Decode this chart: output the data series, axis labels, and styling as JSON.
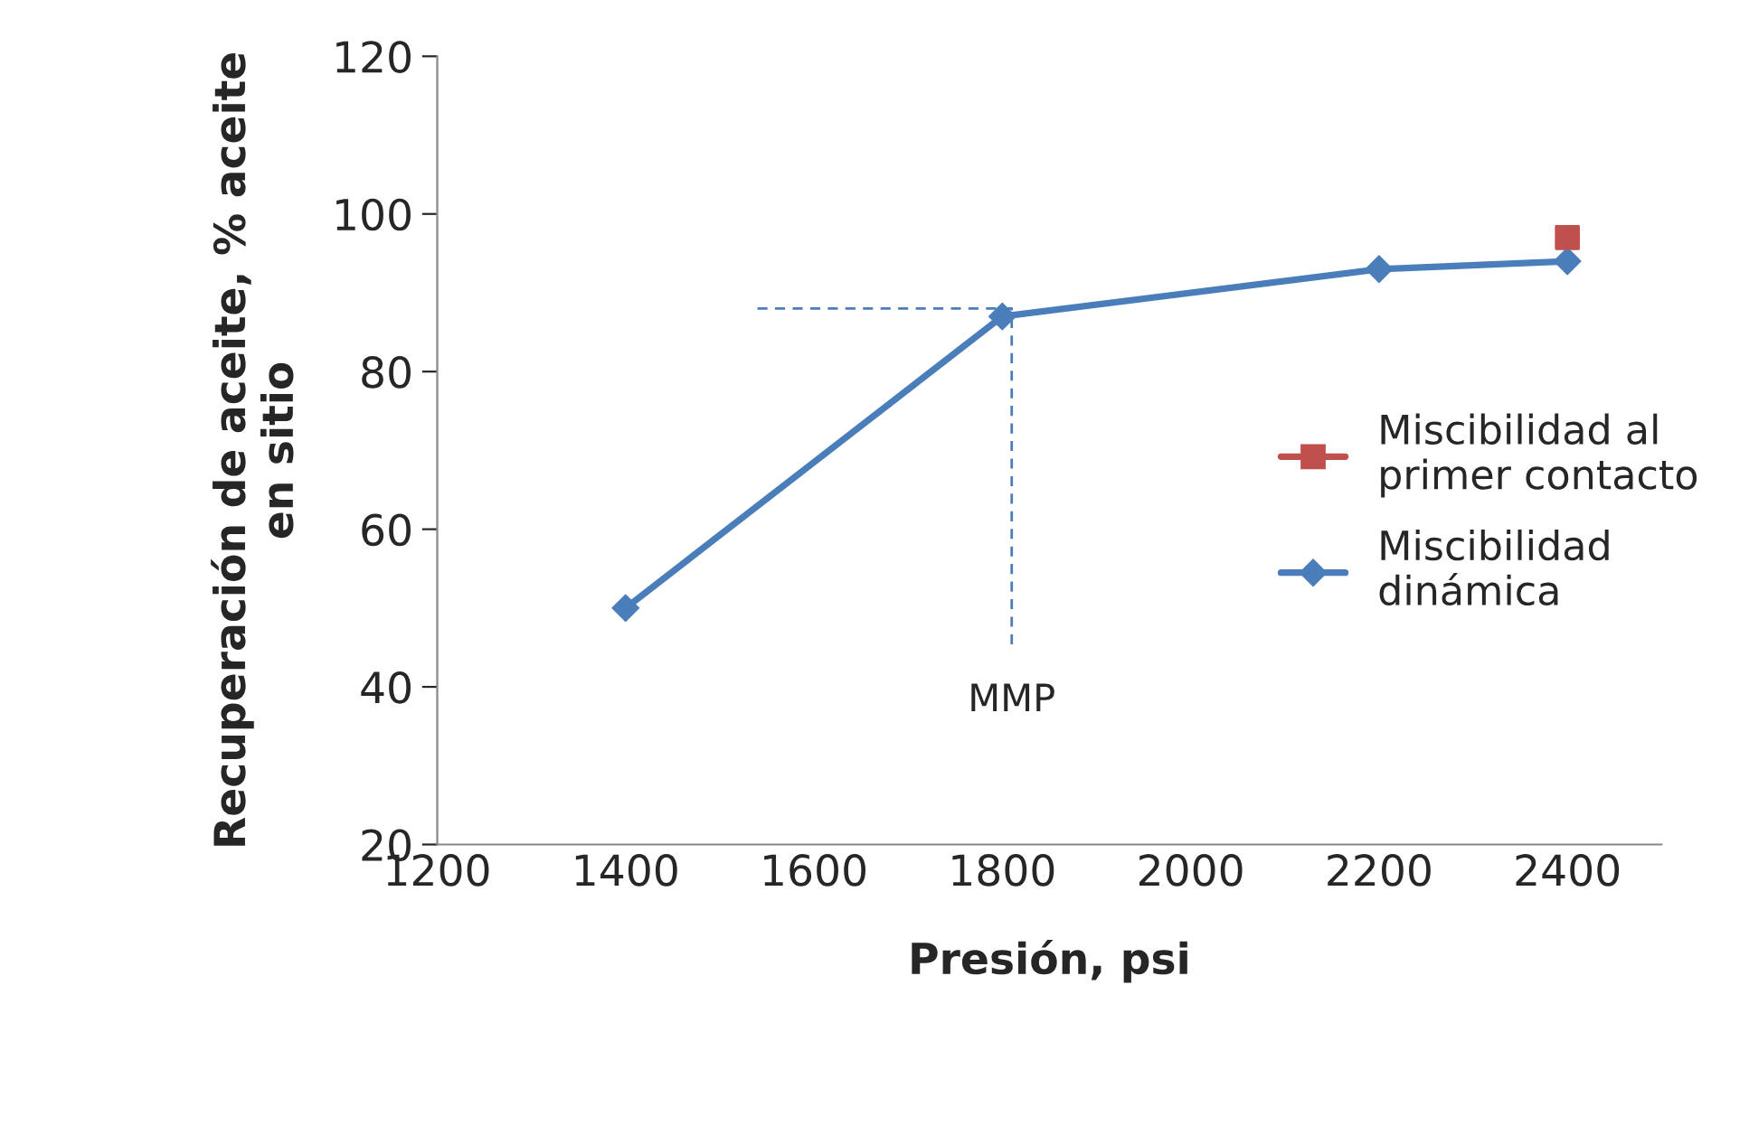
{
  "chart_data": {
    "type": "line",
    "xlabel": "Presión, psi",
    "ylabel": "Recuperación de aceite, % aceite\nen sitio",
    "xlim": [
      1200,
      2500
    ],
    "xticks": [
      1200,
      1400,
      1600,
      1800,
      2000,
      2200,
      2400
    ],
    "ylim": [
      20,
      120
    ],
    "yticks": [
      20,
      40,
      60,
      80,
      100,
      120
    ],
    "grid": false,
    "legend": "right",
    "series": [
      {
        "name": "Miscibilidad al\nprimer contacto",
        "type": "scatter",
        "marker": "square",
        "color": "#c0504d",
        "x": [
          2400
        ],
        "values": [
          97
        ]
      },
      {
        "name": "Miscibilidad\ndinámica",
        "marker": "diamond",
        "line_style": "solid",
        "color": "#4a7ebb",
        "x": [
          1400,
          1800,
          2200,
          2400
        ],
        "values": [
          50,
          87,
          93,
          94
        ]
      },
      {
        "marker": "none",
        "line_style": "dashed",
        "color": "#4a7ebb",
        "x": [
          1540,
          1810,
          1810
        ],
        "values": [
          88,
          88,
          45
        ]
      }
    ],
    "annotations": [
      "MMP"
    ]
  }
}
